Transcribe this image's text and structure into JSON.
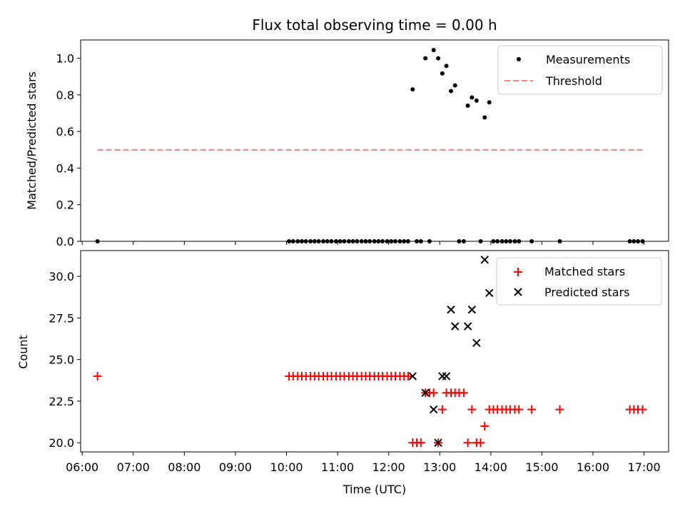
{
  "chart_data": [
    {
      "type": "scatter",
      "title": "Flux total observing time = 0.00 h",
      "xlabel": "",
      "ylabel": "Matched/Predicted stars",
      "xlim": [
        5.97,
        17.48
      ],
      "ylim": [
        0.0,
        1.1
      ],
      "yticks": [
        0.0,
        0.2,
        0.4,
        0.6,
        0.8,
        1.0
      ],
      "ytick_labels": [
        "0.0",
        "0.2",
        "0.4",
        "0.6",
        "0.8",
        "1.0"
      ],
      "legend_position": "top-right",
      "series": [
        {
          "name": "Measurements",
          "marker": "dot",
          "color": "#000000",
          "x": [
            6.3,
            10.05,
            10.13,
            10.22,
            10.3,
            10.38,
            10.47,
            10.55,
            10.63,
            10.72,
            10.8,
            10.88,
            10.97,
            11.05,
            11.13,
            11.22,
            11.3,
            11.38,
            11.47,
            11.55,
            11.63,
            11.72,
            11.8,
            11.88,
            11.97,
            12.05,
            12.13,
            12.22,
            12.3,
            12.38,
            12.47,
            12.55,
            12.63,
            12.72,
            12.8,
            12.88,
            12.97,
            13.05,
            13.13,
            13.22,
            13.3,
            13.38,
            13.47,
            13.55,
            13.63,
            13.72,
            13.8,
            13.88,
            13.97,
            14.05,
            14.13,
            14.22,
            14.3,
            14.38,
            14.47,
            14.55,
            14.8,
            15.35,
            16.72,
            16.8,
            16.88,
            16.97
          ],
          "y": [
            0.0,
            0.0,
            0.0,
            0.0,
            0.0,
            0.0,
            0.0,
            0.0,
            0.0,
            0.0,
            0.0,
            0.0,
            0.0,
            0.0,
            0.0,
            0.0,
            0.0,
            0.0,
            0.0,
            0.0,
            0.0,
            0.0,
            0.0,
            0.0,
            0.0,
            0.0,
            0.0,
            0.0,
            0.0,
            0.0,
            0.83,
            0.0,
            0.0,
            1.0,
            0.0,
            1.045,
            1.0,
            0.917,
            0.958,
            0.821,
            0.852,
            0.0,
            0.0,
            0.741,
            0.786,
            0.769,
            0.0,
            0.677,
            0.759,
            0.0,
            0.0,
            0.0,
            0.0,
            0.0,
            0.0,
            0.0,
            0.0,
            0.0,
            0.0,
            0.0,
            0.0,
            0.0
          ]
        },
        {
          "name": "Threshold",
          "marker": "dashed-line",
          "color": "#ff7f7f",
          "x": [
            6.3,
            16.97
          ],
          "y": [
            0.5,
            0.5
          ]
        }
      ]
    },
    {
      "type": "scatter",
      "title": "",
      "xlabel": "Time (UTC)",
      "ylabel": "Count",
      "xlim": [
        5.97,
        17.48
      ],
      "ylim": [
        19.45,
        31.55
      ],
      "xticks": [
        6,
        7,
        8,
        9,
        10,
        11,
        12,
        13,
        14,
        15,
        16,
        17
      ],
      "xtick_labels": [
        "06:00",
        "07:00",
        "08:00",
        "09:00",
        "10:00",
        "11:00",
        "12:00",
        "13:00",
        "14:00",
        "15:00",
        "16:00",
        "17:00"
      ],
      "yticks": [
        20.0,
        22.5,
        25.0,
        27.5,
        30.0
      ],
      "ytick_labels": [
        "20.0",
        "22.5",
        "25.0",
        "27.5",
        "30.0"
      ],
      "legend_position": "top-right",
      "series": [
        {
          "name": "Matched stars",
          "marker": "plus",
          "color": "#ff0000",
          "x": [
            6.3,
            10.05,
            10.13,
            10.22,
            10.3,
            10.38,
            10.47,
            10.55,
            10.63,
            10.72,
            10.8,
            10.88,
            10.97,
            11.05,
            11.13,
            11.22,
            11.3,
            11.38,
            11.47,
            11.55,
            11.63,
            11.72,
            11.8,
            11.88,
            11.97,
            12.05,
            12.13,
            12.22,
            12.3,
            12.38,
            12.47,
            12.55,
            12.63,
            12.72,
            12.8,
            12.88,
            12.97,
            13.05,
            13.13,
            13.22,
            13.3,
            13.38,
            13.47,
            13.55,
            13.63,
            13.72,
            13.8,
            13.88,
            13.97,
            14.05,
            14.13,
            14.22,
            14.3,
            14.38,
            14.47,
            14.55,
            14.8,
            15.35,
            16.72,
            16.8,
            16.88,
            16.97
          ],
          "y": [
            24,
            24,
            24,
            24,
            24,
            24,
            24,
            24,
            24,
            24,
            24,
            24,
            24,
            24,
            24,
            24,
            24,
            24,
            24,
            24,
            24,
            24,
            24,
            24,
            24,
            24,
            24,
            24,
            24,
            24,
            20,
            20,
            20,
            23,
            23,
            23,
            20,
            22,
            23,
            23,
            23,
            23,
            23,
            20,
            22,
            20,
            20,
            21,
            22,
            22,
            22,
            22,
            22,
            22,
            22,
            22,
            22,
            22,
            22,
            22,
            22,
            22
          ]
        },
        {
          "name": "Predicted stars",
          "marker": "x",
          "color": "#000000",
          "x": [
            12.47,
            12.72,
            12.88,
            12.97,
            13.05,
            13.13,
            13.22,
            13.3,
            13.55,
            13.63,
            13.72,
            13.88,
            13.97
          ],
          "y": [
            24,
            23,
            22,
            20,
            24,
            24,
            28,
            27,
            27,
            28,
            26,
            31,
            29
          ]
        }
      ]
    }
  ]
}
